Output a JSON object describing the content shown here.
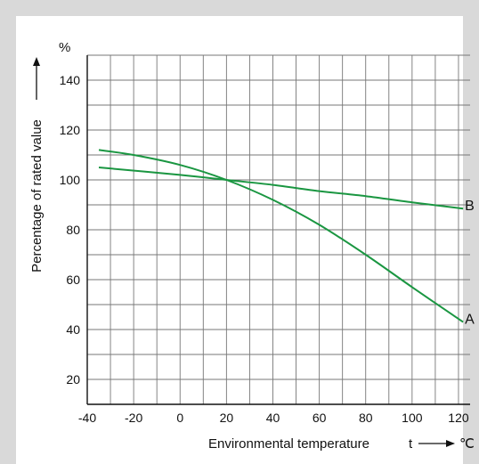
{
  "chart_data": {
    "type": "line",
    "xlabel": "Environmental temperature",
    "xsymbol": "t",
    "xunit": "℃",
    "ylabel": "Percentage of rated value",
    "yunit": "%",
    "xlim": [
      -40,
      125
    ],
    "ylim": [
      10,
      150
    ],
    "xticks": [
      -40,
      -20,
      0,
      20,
      40,
      60,
      80,
      100,
      120
    ],
    "yticks": [
      20,
      40,
      60,
      80,
      100,
      120,
      140
    ],
    "xtick_labels": [
      "-40",
      "-20",
      "0",
      "20",
      "40",
      "60",
      "80",
      "100",
      "120"
    ],
    "ytick_labels": [
      "20",
      "40",
      "60",
      "80",
      "100",
      "120",
      "140"
    ],
    "grid": true,
    "colors": {
      "line": "#1a9641",
      "grid": "#777777",
      "axis": "#111111"
    },
    "series": [
      {
        "name": "A",
        "x": [
          -35,
          -20,
          0,
          20,
          40,
          60,
          80,
          100,
          122
        ],
        "y": [
          112,
          110,
          106,
          100,
          92,
          82,
          70,
          57,
          43
        ]
      },
      {
        "name": "B",
        "x": [
          -35,
          0,
          20,
          40,
          60,
          80,
          100,
          122
        ],
        "y": [
          105,
          102,
          100,
          98,
          95.5,
          93.5,
          91,
          88.5
        ]
      }
    ]
  }
}
